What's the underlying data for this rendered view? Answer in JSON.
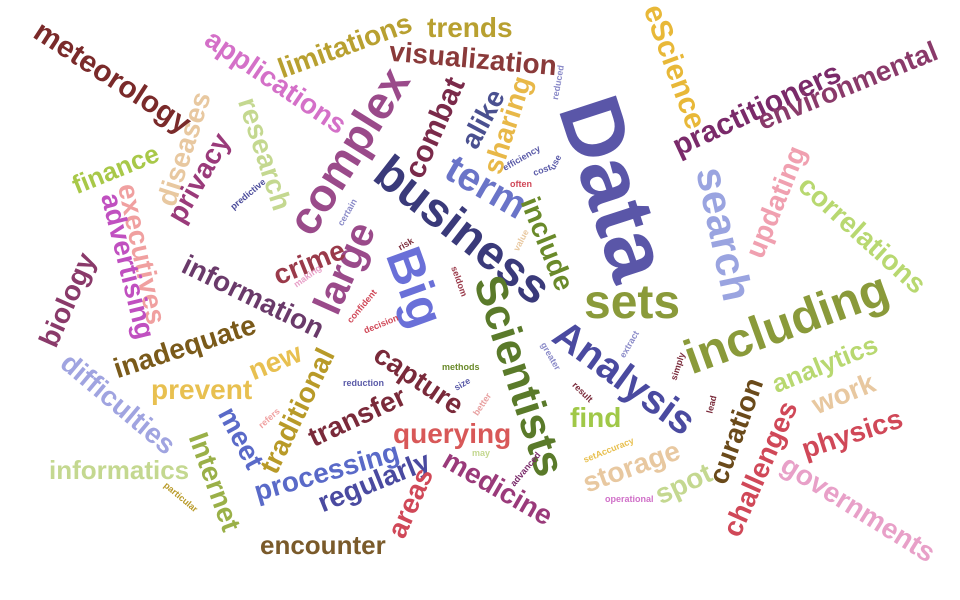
{
  "words": [
    {
      "text": "Data",
      "color": "#5a56a8"
    },
    {
      "text": "business",
      "color": "#3a3a7a"
    },
    {
      "text": "Big",
      "color": "#6a70d8"
    },
    {
      "text": "Scientists",
      "color": "#5a7a2a"
    },
    {
      "text": "Analysis",
      "color": "#4a4aa0"
    },
    {
      "text": "sets",
      "color": "#8a9a3a"
    },
    {
      "text": "including",
      "color": "#8a9a3a"
    },
    {
      "text": "complex",
      "color": "#9a4a8a"
    },
    {
      "text": "large",
      "color": "#9a4a8a"
    },
    {
      "text": "search",
      "color": "#9aa4e0"
    },
    {
      "text": "term",
      "color": "#6a74c8"
    },
    {
      "text": "meteorology",
      "color": "#7a2a2a"
    },
    {
      "text": "applications",
      "color": "#d470c8"
    },
    {
      "text": "limitations",
      "color": "#b8a030"
    },
    {
      "text": "trends",
      "color": "#b8a030"
    },
    {
      "text": "visualization",
      "color": "#8a3a3a"
    },
    {
      "text": "eScience",
      "color": "#e8b838"
    },
    {
      "text": "practitioners",
      "color": "#7a2a6a"
    },
    {
      "text": "environmental",
      "color": "#8a3a6a"
    },
    {
      "text": "research",
      "color": "#c4d890"
    },
    {
      "text": "diseases",
      "color": "#e8c8a0"
    },
    {
      "text": "finance",
      "color": "#a8c848"
    },
    {
      "text": "privacy",
      "color": "#9a3a7a"
    },
    {
      "text": "executives",
      "color": "#f0a0a0"
    },
    {
      "text": "advertising",
      "color": "#c050c0"
    },
    {
      "text": "combat",
      "color": "#7a2a4a"
    },
    {
      "text": "alike",
      "color": "#4a5090"
    },
    {
      "text": "sharing",
      "color": "#e8b848"
    },
    {
      "text": "include",
      "color": "#6a8a2a"
    },
    {
      "text": "updating",
      "color": "#f0a0b0"
    },
    {
      "text": "correlations",
      "color": "#b8d870"
    },
    {
      "text": "biology",
      "color": "#8a3a6a"
    },
    {
      "text": "information",
      "color": "#6a3a6a"
    },
    {
      "text": "crime",
      "color": "#9a3a4a"
    },
    {
      "text": "inadequate",
      "color": "#7a5a1a"
    },
    {
      "text": "new",
      "color": "#e8c050"
    },
    {
      "text": "prevent",
      "color": "#e8c050"
    },
    {
      "text": "difficulties",
      "color": "#a0a4e0"
    },
    {
      "text": "traditional",
      "color": "#b89a28"
    },
    {
      "text": "capture",
      "color": "#7a2a3a"
    },
    {
      "text": "transfer",
      "color": "#7a2a3a"
    },
    {
      "text": "find",
      "color": "#a0c848"
    },
    {
      "text": "analytics",
      "color": "#b8d870"
    },
    {
      "text": "work",
      "color": "#e8c8a0"
    },
    {
      "text": "physics",
      "color": "#d04858"
    },
    {
      "text": "curation",
      "color": "#6a4a1a"
    },
    {
      "text": "challenges",
      "color": "#d04858"
    },
    {
      "text": "governments",
      "color": "#e8a0c8"
    },
    {
      "text": "informatics",
      "color": "#c4d890"
    },
    {
      "text": "meet",
      "color": "#5a6ac8"
    },
    {
      "text": "Internet",
      "color": "#9ab048"
    },
    {
      "text": "processing",
      "color": "#5a6ac8"
    },
    {
      "text": "querying",
      "color": "#d85858"
    },
    {
      "text": "regularly",
      "color": "#4a4aa0"
    },
    {
      "text": "medicine",
      "color": "#9a3a7a"
    },
    {
      "text": "areas",
      "color": "#d04858"
    },
    {
      "text": "storage",
      "color": "#e8c8a0"
    },
    {
      "text": "spot",
      "color": "#c4d890"
    },
    {
      "text": "encounter",
      "color": "#7a5a2a"
    },
    {
      "text": "reduced",
      "color": "#8a8ac8"
    },
    {
      "text": "efficiency",
      "color": "#5a5aa8"
    },
    {
      "text": "use",
      "color": "#5a5aa8"
    },
    {
      "text": "cost",
      "color": "#5a5aa8"
    },
    {
      "text": "often",
      "color": "#d04858"
    },
    {
      "text": "predictive",
      "color": "#4a4a9a"
    },
    {
      "text": "certain",
      "color": "#8a8ac8"
    },
    {
      "text": "value",
      "color": "#e8c8a0"
    },
    {
      "text": "risk",
      "color": "#7a2a3a"
    },
    {
      "text": "making",
      "color": "#e8a0c8"
    },
    {
      "text": "confident",
      "color": "#d04858"
    },
    {
      "text": "decision",
      "color": "#d04858"
    },
    {
      "text": "seldom",
      "color": "#9a3a4a"
    },
    {
      "text": "methods",
      "color": "#6a8a2a"
    },
    {
      "text": "reduction",
      "color": "#5a5aa8"
    },
    {
      "text": "size",
      "color": "#5a5aa8"
    },
    {
      "text": "better",
      "color": "#e8a0a0"
    },
    {
      "text": "greater",
      "color": "#8a8ac8"
    },
    {
      "text": "result",
      "color": "#7a2a3a"
    },
    {
      "text": "extract",
      "color": "#8a8ac8"
    },
    {
      "text": "simply",
      "color": "#7a2a3a"
    },
    {
      "text": "lead",
      "color": "#7a2a3a"
    },
    {
      "text": "refers",
      "color": "#f0a0a0"
    },
    {
      "text": "may",
      "color": "#c4d890"
    },
    {
      "text": "advanced",
      "color": "#7a2a6a"
    },
    {
      "text": "setAccuracy",
      "color": "#e8c050"
    },
    {
      "text": "operational",
      "color": "#d070c8"
    },
    {
      "text": "particular",
      "color": "#b89a28"
    }
  ]
}
